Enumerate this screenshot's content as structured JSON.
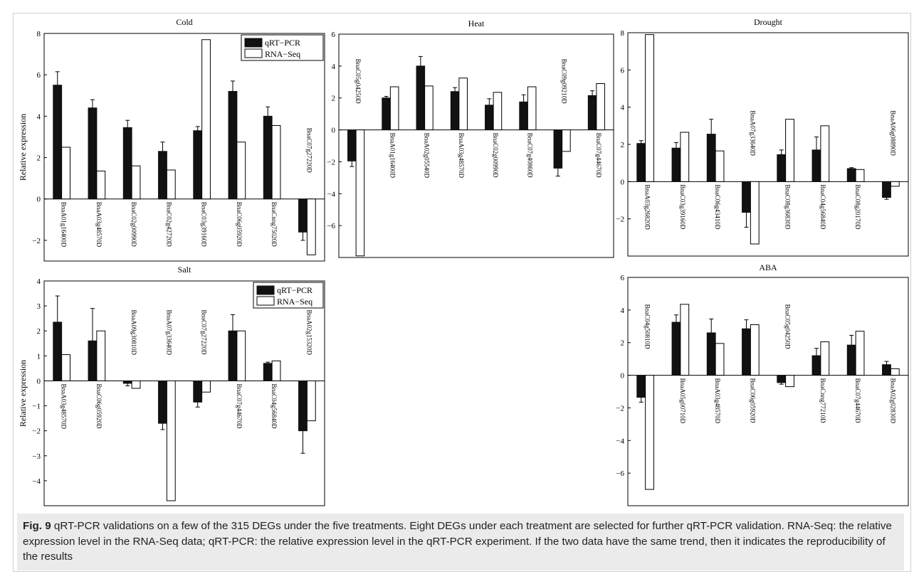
{
  "figure": {
    "caption_label": "Fig. 9",
    "caption_text": " qRT-PCR validations on a few of the 315 DEGs under the five treatments. Eight DEGs under each treatment are selected for further qRT-PCR validation. RNA-Seq: the relative expression level in the RNA-Seq data; qRT-PCR: the relative expression level in the qRT-PCR experiment. If the two data have the same trend, then it indicates the reproducibility of the results"
  },
  "colors": {
    "qrt": "#111111",
    "rna": "#ffffff",
    "axis": "#000000"
  },
  "chart_data": [
    {
      "type": "bar",
      "title": "Cold",
      "ylabel": "Relative expression",
      "ylim": [
        -3,
        8
      ],
      "yticks": [
        -2,
        0,
        2,
        4,
        6,
        8
      ],
      "legend": "top-right",
      "categories": [
        "BnaA01g16400D",
        "BnaA03g48570D",
        "BnaC02g00990D",
        "BnaC02g42720D",
        "BnaC03g39160D",
        "BnaC06g05920D",
        "BnaCnng75020D",
        "BnaC07g27220D"
      ],
      "series": [
        {
          "name": "qRT−PCR",
          "values": [
            5.5,
            4.4,
            3.45,
            2.3,
            3.3,
            5.2,
            4.0,
            -1.6
          ],
          "errors": [
            0.65,
            0.4,
            0.35,
            0.45,
            0.2,
            0.5,
            0.45,
            0.4
          ]
        },
        {
          "name": "RNA−Seq",
          "values": [
            2.5,
            1.35,
            1.6,
            1.4,
            7.7,
            2.75,
            3.55,
            -2.7
          ]
        }
      ]
    },
    {
      "type": "bar",
      "title": "Heat",
      "ylim": [
        -8,
        6
      ],
      "yticks": [
        -6,
        -4,
        -2,
        0,
        2,
        4,
        6
      ],
      "categories": [
        "BnaC05g04250D",
        "BnaA01g16400D",
        "BnaA02g05540D",
        "BnaA03g48570D",
        "BnaC02g00990D",
        "BnaC07g40860D",
        "BnaC09g09210D",
        "BnaC07g44670D"
      ],
      "series": [
        {
          "name": "qRT−PCR",
          "values": [
            -1.95,
            2.0,
            4.0,
            2.4,
            1.55,
            1.75,
            -2.4,
            2.15
          ],
          "errors": [
            0.35,
            0.1,
            0.6,
            0.25,
            0.4,
            0.45,
            0.5,
            0.3
          ]
        },
        {
          "name": "RNA−Seq",
          "values": [
            -7.9,
            2.7,
            2.75,
            3.25,
            2.35,
            2.7,
            -1.35,
            2.9
          ]
        }
      ]
    },
    {
      "type": "bar",
      "title": "Drought",
      "ylim": [
        -4,
        8
      ],
      "yticks": [
        -2,
        0,
        2,
        4,
        6,
        8
      ],
      "categories": [
        "BnaA03g26820D",
        "BnaC03g39160D",
        "BnaC06g43410D",
        "BnaA07g33640D",
        "BnaC08g36830D",
        "BnaC04g56840D",
        "BnaC08g20170D",
        "BnaA06g08890D"
      ],
      "series": [
        {
          "name": "qRT−PCR",
          "values": [
            2.05,
            1.8,
            2.55,
            -1.65,
            1.45,
            1.7,
            0.7,
            -0.85
          ],
          "errors": [
            0.15,
            0.3,
            0.8,
            0.8,
            0.25,
            0.7,
            0.05,
            0.1
          ]
        },
        {
          "name": "RNA−Seq",
          "values": [
            7.9,
            2.65,
            1.65,
            -3.35,
            3.35,
            3.0,
            0.65,
            -0.25
          ]
        }
      ]
    },
    {
      "type": "bar",
      "title": "Salt",
      "ylabel": "Relative expression",
      "ylim": [
        -5,
        4
      ],
      "yticks": [
        -4,
        -3,
        -2,
        -1,
        0,
        1,
        2,
        3,
        4
      ],
      "legend": "top-right",
      "categories": [
        "BnaA03g48570D",
        "BnaC06g05920D",
        "BnaA09g30810D",
        "BnaA07g33640D",
        "BnaC07g27220D",
        "BnaC07g44670D",
        "BnaC04g56840D",
        "BnaA02g15320D"
      ],
      "series": [
        {
          "name": "qRT−PCR",
          "values": [
            2.35,
            1.6,
            -0.1,
            -1.7,
            -0.85,
            2.0,
            0.7,
            -2.0
          ],
          "errors": [
            1.05,
            1.3,
            0.1,
            0.25,
            0.2,
            0.65,
            0.05,
            0.9
          ]
        },
        {
          "name": "RNA−Seq",
          "values": [
            1.05,
            2.0,
            -0.3,
            -4.8,
            -0.45,
            2.0,
            0.8,
            -1.6
          ]
        }
      ]
    },
    {
      "type": "bar",
      "title": "ABA",
      "ylim": [
        -8,
        6
      ],
      "yticks": [
        -6,
        -4,
        -2,
        0,
        2,
        4,
        6
      ],
      "categories": [
        "BnaC04g50810D",
        "BnaA05g00710D",
        "BnaA03g48570D",
        "BnaC06g05920D",
        "BnaC05g04250D",
        "BnaCnng77210D",
        "BnaC07g44670D",
        "BnaA02g02830D"
      ],
      "series": [
        {
          "name": "qRT−PCR",
          "values": [
            -1.35,
            3.25,
            2.6,
            2.85,
            -0.45,
            1.2,
            1.85,
            0.65
          ],
          "errors": [
            0.3,
            0.45,
            0.85,
            0.55,
            0.1,
            0.45,
            0.6,
            0.2
          ]
        },
        {
          "name": "RNA−Seq",
          "values": [
            -7.0,
            4.35,
            1.95,
            3.1,
            -0.7,
            2.05,
            2.7,
            0.4
          ]
        }
      ]
    }
  ]
}
